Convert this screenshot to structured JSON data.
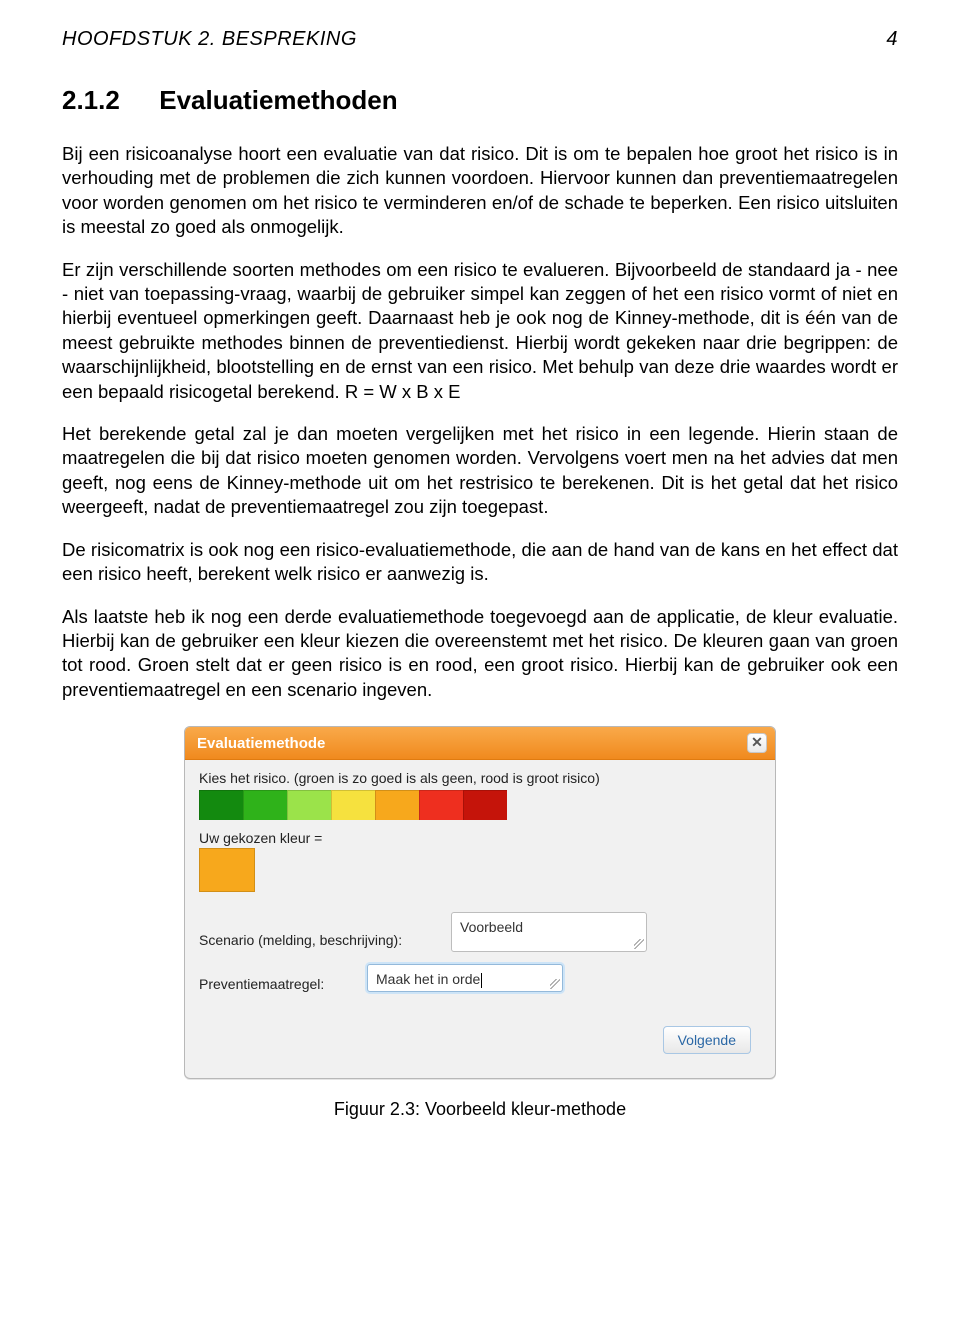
{
  "header": {
    "running_head": "HOOFDSTUK 2. BESPREKING",
    "page_number": "4"
  },
  "section": {
    "number": "2.1.2",
    "title": "Evaluatiemethoden"
  },
  "paragraphs": {
    "p1": "Bij een risicoanalyse hoort een evaluatie van dat risico. Dit is om te bepalen hoe groot het risico is in verhouding met de problemen die zich kunnen voordoen. Hiervoor kunnen dan preventiemaatregelen voor worden genomen om het risico te verminderen en/of de schade te beperken. Een risico uitsluiten is meestal zo goed als onmogelijk.",
    "p2": "Er zijn verschillende soorten methodes om een risico te evalueren. Bijvoorbeeld de standaard ja - nee - niet van toepassing-vraag, waarbij de gebruiker simpel kan zeggen of het een risico vormt of niet en hierbij eventueel opmerkingen geeft. Daarnaast heb je ook nog de Kinney-methode, dit is één van de meest gebruikte methodes binnen de preventiedienst. Hierbij wordt gekeken naar drie begrippen: de waarschijnlijkheid, blootstelling en de ernst van een risico. Met behulp van deze drie waardes wordt er een bepaald risicogetal berekend. R = W x B x E",
    "p3": "Het berekende getal zal je dan moeten vergelijken met het risico in een legende. Hierin staan de maatregelen die bij dat risico moeten genomen worden. Vervolgens voert men na het advies dat men geeft, nog eens de Kinney-methode uit om het restrisico te berekenen. Dit is het getal dat het risico weergeeft, nadat de preventiemaatregel zou zijn toegepast.",
    "p4": "De risicomatrix is ook nog een risico-evaluatiemethode, die aan de hand van de kans en het effect dat een risico heeft, berekent welk risico er aanwezig is.",
    "p5": "Als laatste heb ik nog een derde evaluatiemethode toegevoegd aan de applicatie, de kleur evaluatie. Hierbij kan de gebruiker een kleur kiezen die overeenstemt met het risico. De kleuren gaan van groen tot rood. Groen stelt dat er geen risico is en rood, een groot risico. Hierbij kan de gebruiker ook een preventiemaatregel en een scenario ingeven."
  },
  "dialog": {
    "title": "Evaluatiemethode",
    "close_glyph": "✕",
    "instruction": "Kies het risico. (groen is zo goed is als geen, rood is groot risico)",
    "swatch_colors": [
      "#138a0f",
      "#2fb21a",
      "#9be34a",
      "#f6e13e",
      "#f7a81c",
      "#ee2f1f",
      "#c5140a"
    ],
    "chosen_label": "Uw gekozen kleur =",
    "chosen_color": "#f7a81c",
    "scenario_label": "Scenario (melding, beschrijving):",
    "scenario_value": "Voorbeeld",
    "prevent_label": "Preventiemaatregel:",
    "prevent_value": "Maak het in orde",
    "next_button": "Volgende"
  },
  "caption": "Figuur 2.3: Voorbeeld kleur-methode"
}
